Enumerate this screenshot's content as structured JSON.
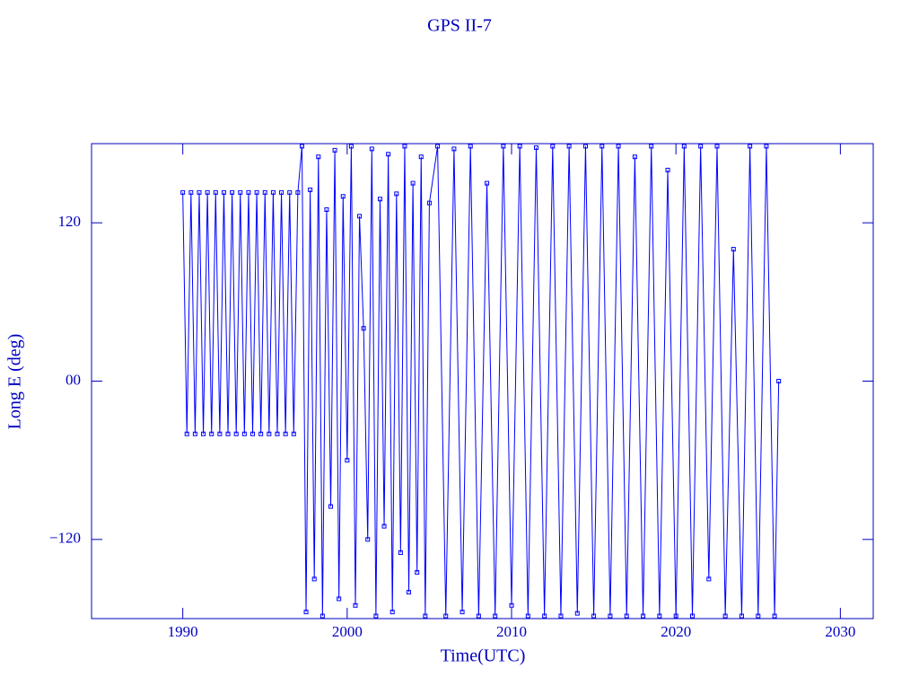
{
  "chart_data": {
    "type": "line",
    "title": "GPS II-7",
    "xlabel": "Time(UTC)",
    "ylabel": "Long E (deg)",
    "color": "#0000ff",
    "xlim": [
      1984.45,
      2032
    ],
    "xticks": [
      1990,
      2000,
      2010,
      2020,
      2030
    ],
    "ylim": [
      -180,
      180
    ],
    "yticks": [
      {
        "value": -120,
        "label": "−120"
      },
      {
        "value": 0,
        "label": "00"
      },
      120
    ],
    "x": [
      1990,
      1990.25,
      1990.5,
      1990.75,
      1991,
      1991.25,
      1991.5,
      1991.75,
      1992,
      1992.25,
      1992.5,
      1992.75,
      1993,
      1993.25,
      1993.5,
      1993.75,
      1994,
      1994.25,
      1994.5,
      1994.75,
      1995,
      1995.25,
      1995.5,
      1995.75,
      1996,
      1996.25,
      1996.5,
      1996.75,
      1997,
      1997.25,
      1997.5,
      1997.75,
      1998,
      1998.25,
      1998.5,
      1998.75,
      1999,
      1999.25,
      1999.5,
      1999.75,
      2000,
      2000.25,
      2000.5,
      2000.75,
      2001,
      2001.25,
      2001.5,
      2001.75,
      2002,
      2002.25,
      2002.5,
      2002.75,
      2003,
      2003.25,
      2003.5,
      2003.75,
      2004,
      2004.25,
      2004.5,
      2004.75,
      2005,
      2005.5,
      2006,
      2006.5,
      2007,
      2007.5,
      2008,
      2008.5,
      2009,
      2009.5,
      2010,
      2010.5,
      2011,
      2011.5,
      2012,
      2012.5,
      2013,
      2013.5,
      2014,
      2014.5,
      2015,
      2015.5,
      2016,
      2016.5,
      2017,
      2017.5,
      2018,
      2018.5,
      2019,
      2019.5,
      2020,
      2020.5,
      2021,
      2021.5,
      2022,
      2022.5,
      2023,
      2023.5,
      2024,
      2024.5,
      2025,
      2025.5,
      2026,
      2026.25
    ],
    "values": [
      143,
      -40,
      143,
      -40,
      143,
      -40,
      143,
      -40,
      143,
      -40,
      143,
      -40,
      143,
      -40,
      143,
      -40,
      143,
      -40,
      143,
      -40,
      143,
      -40,
      143,
      -40,
      143,
      -40,
      143,
      -40,
      143,
      178,
      -175,
      145,
      -150,
      170,
      -178,
      130,
      -95,
      175,
      -165,
      140,
      -60,
      178,
      -170,
      125,
      40,
      -120,
      176,
      -178,
      138,
      -110,
      172,
      -175,
      142,
      -130,
      178,
      -160,
      150,
      -145,
      170,
      -178,
      135,
      178,
      -178,
      176,
      -175,
      178,
      -178,
      150,
      -178,
      178,
      -170,
      178,
      -178,
      177,
      -178,
      178,
      -178,
      178,
      -176,
      178,
      -178,
      178,
      -178,
      178,
      -178,
      170,
      -178,
      178,
      -178,
      160,
      -178,
      178,
      -178,
      178,
      -150,
      178,
      -178,
      100,
      -178,
      178,
      -178,
      178,
      -178,
      0
    ]
  }
}
